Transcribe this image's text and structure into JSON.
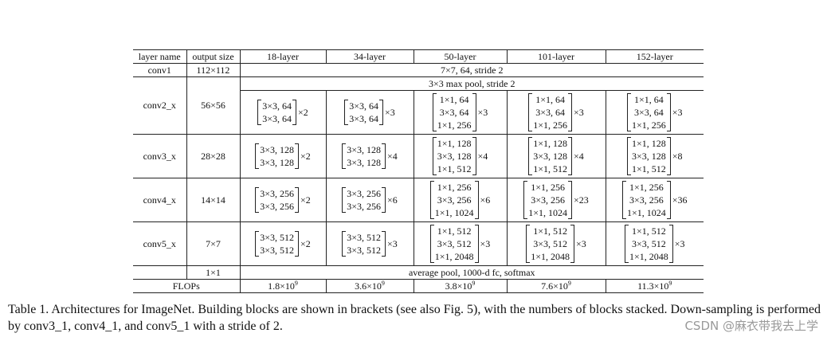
{
  "table": {
    "headers": [
      "layer name",
      "output size",
      "18-layer",
      "34-layer",
      "50-layer",
      "101-layer",
      "152-layer"
    ],
    "conv1": {
      "name": "conv1",
      "size": "112×112",
      "desc": "7×7, 64, stride 2"
    },
    "pool": {
      "desc": "3×3 max pool, stride 2"
    },
    "stages": [
      {
        "name": "conv2_x",
        "size": "56×56",
        "blocks": [
          {
            "lines": [
              "3×3, 64",
              "3×3, 64"
            ],
            "mult": "×2"
          },
          {
            "lines": [
              "3×3, 64",
              "3×3, 64"
            ],
            "mult": "×3"
          },
          {
            "lines": [
              "1×1, 64",
              "3×3, 64",
              "1×1, 256"
            ],
            "mult": "×3"
          },
          {
            "lines": [
              "1×1, 64",
              "3×3, 64",
              "1×1, 256"
            ],
            "mult": "×3"
          },
          {
            "lines": [
              "1×1, 64",
              "3×3, 64",
              "1×1, 256"
            ],
            "mult": "×3"
          }
        ]
      },
      {
        "name": "conv3_x",
        "size": "28×28",
        "blocks": [
          {
            "lines": [
              "3×3, 128",
              "3×3, 128"
            ],
            "mult": "×2"
          },
          {
            "lines": [
              "3×3, 128",
              "3×3, 128"
            ],
            "mult": "×4"
          },
          {
            "lines": [
              "1×1, 128",
              "3×3, 128",
              "1×1, 512"
            ],
            "mult": "×4"
          },
          {
            "lines": [
              "1×1, 128",
              "3×3, 128",
              "1×1, 512"
            ],
            "mult": "×4"
          },
          {
            "lines": [
              "1×1, 128",
              "3×3, 128",
              "1×1, 512"
            ],
            "mult": "×8"
          }
        ]
      },
      {
        "name": "conv4_x",
        "size": "14×14",
        "blocks": [
          {
            "lines": [
              "3×3, 256",
              "3×3, 256"
            ],
            "mult": "×2"
          },
          {
            "lines": [
              "3×3, 256",
              "3×3, 256"
            ],
            "mult": "×6"
          },
          {
            "lines": [
              "1×1, 256",
              "3×3, 256",
              "1×1, 1024"
            ],
            "mult": "×6"
          },
          {
            "lines": [
              "1×1, 256",
              "3×3, 256",
              "1×1, 1024"
            ],
            "mult": "×23"
          },
          {
            "lines": [
              "1×1, 256",
              "3×3, 256",
              "1×1, 1024"
            ],
            "mult": "×36"
          }
        ]
      },
      {
        "name": "conv5_x",
        "size": "7×7",
        "blocks": [
          {
            "lines": [
              "3×3, 512",
              "3×3, 512"
            ],
            "mult": "×2"
          },
          {
            "lines": [
              "3×3, 512",
              "3×3, 512"
            ],
            "mult": "×3"
          },
          {
            "lines": [
              "1×1, 512",
              "3×3, 512",
              "1×1, 2048"
            ],
            "mult": "×3"
          },
          {
            "lines": [
              "1×1, 512",
              "3×3, 512",
              "1×1, 2048"
            ],
            "mult": "×3"
          },
          {
            "lines": [
              "1×1, 512",
              "3×3, 512",
              "1×1, 2048"
            ],
            "mult": "×3"
          }
        ]
      }
    ],
    "avg": {
      "size": "1×1",
      "desc": "average pool, 1000-d fc, softmax"
    },
    "flops": {
      "label": "FLOPs",
      "values": [
        {
          "base": "1.8×10",
          "exp": "9"
        },
        {
          "base": "3.6×10",
          "exp": "9"
        },
        {
          "base": "3.8×10",
          "exp": "9"
        },
        {
          "base": "7.6×10",
          "exp": "9"
        },
        {
          "base": "11.3×10",
          "exp": "9"
        }
      ]
    }
  },
  "caption": "Table 1. Architectures for ImageNet. Building blocks are shown in brackets (see also Fig. 5), with the numbers of blocks stacked. Down-sampling is performed by conv3_1, conv4_1, and conv5_1 with a stride of 2.",
  "watermark": "CSDN @麻衣带我去上学"
}
